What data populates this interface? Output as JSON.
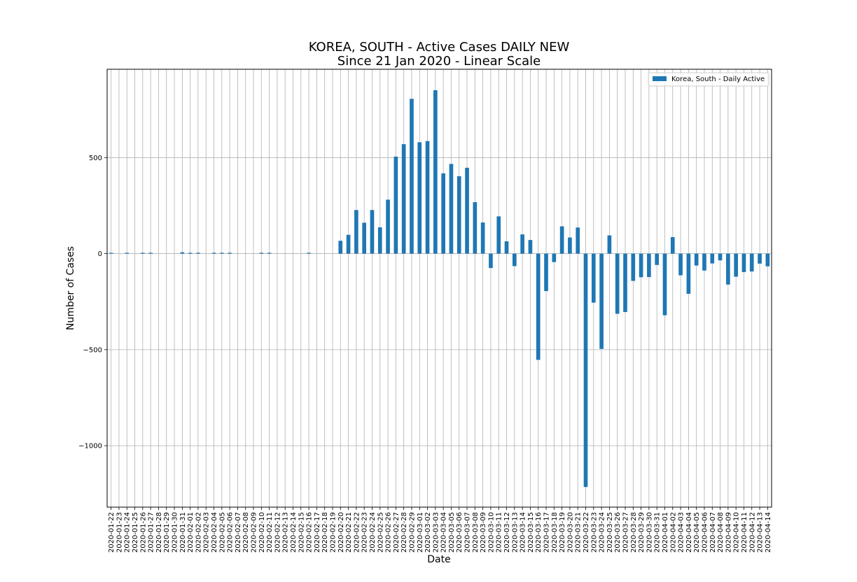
{
  "chart_data": {
    "type": "bar",
    "title": "KOREA, SOUTH - Active Cases DAILY NEW",
    "subtitle": "Since 21 Jan 2020 - Linear Scale",
    "xlabel": "Date",
    "ylabel": "Number of Cases",
    "ylim": [
      -1320,
      960
    ],
    "yticks": [
      -1000,
      -500,
      0,
      500
    ],
    "ytick_labels": [
      "−1000",
      "−500",
      "0",
      "500"
    ],
    "grid": true,
    "legend_position": "top-right",
    "bar_color": "#1f77b4",
    "categories": [
      "2020-01-22",
      "2020-01-23",
      "2020-01-24",
      "2020-01-25",
      "2020-01-26",
      "2020-01-27",
      "2020-01-28",
      "2020-01-29",
      "2020-01-30",
      "2020-01-31",
      "2020-02-01",
      "2020-02-02",
      "2020-02-03",
      "2020-02-04",
      "2020-02-05",
      "2020-02-06",
      "2020-02-07",
      "2020-02-08",
      "2020-02-09",
      "2020-02-10",
      "2020-02-11",
      "2020-02-12",
      "2020-02-13",
      "2020-02-14",
      "2020-02-15",
      "2020-02-16",
      "2020-02-17",
      "2020-02-18",
      "2020-02-19",
      "2020-02-20",
      "2020-02-21",
      "2020-02-22",
      "2020-02-23",
      "2020-02-24",
      "2020-02-25",
      "2020-02-26",
      "2020-02-27",
      "2020-02-28",
      "2020-02-29",
      "2020-03-01",
      "2020-03-02",
      "2020-03-03",
      "2020-03-04",
      "2020-03-05",
      "2020-03-06",
      "2020-03-07",
      "2020-03-08",
      "2020-03-09",
      "2020-03-10",
      "2020-03-11",
      "2020-03-12",
      "2020-03-13",
      "2020-03-14",
      "2020-03-15",
      "2020-03-16",
      "2020-03-17",
      "2020-03-18",
      "2020-03-19",
      "2020-03-20",
      "2020-03-21",
      "2020-03-22",
      "2020-03-23",
      "2020-03-24",
      "2020-03-25",
      "2020-03-26",
      "2020-03-27",
      "2020-03-28",
      "2020-03-29",
      "2020-03-30",
      "2020-03-31",
      "2020-04-01",
      "2020-04-02",
      "2020-04-03",
      "2020-04-04",
      "2020-04-05",
      "2020-04-06",
      "2020-04-07",
      "2020-04-08",
      "2020-04-09",
      "2020-04-10",
      "2020-04-11",
      "2020-04-12",
      "2020-04-13",
      "2020-04-14"
    ],
    "series": [
      {
        "name": "Korea, South - Daily Active",
        "values": [
          1,
          0,
          1,
          0,
          1,
          1,
          0,
          0,
          0,
          7,
          1,
          3,
          0,
          1,
          2,
          2,
          0,
          0,
          0,
          2,
          2,
          0,
          0,
          0,
          0,
          1,
          0,
          0,
          0,
          67,
          98,
          227,
          161,
          227,
          137,
          281,
          505,
          570,
          806,
          580,
          586,
          851,
          418,
          467,
          403,
          447,
          268,
          162,
          -75,
          194,
          64,
          -65,
          100,
          71,
          -553,
          -195,
          -44,
          142,
          84,
          136,
          -1215,
          -255,
          -496,
          95,
          -313,
          -304,
          -142,
          -123,
          -122,
          -59,
          -321,
          86,
          -113,
          -209,
          -62,
          -88,
          -51,
          -35,
          -161,
          -120,
          -96,
          -93,
          -52,
          -66
        ]
      }
    ]
  }
}
